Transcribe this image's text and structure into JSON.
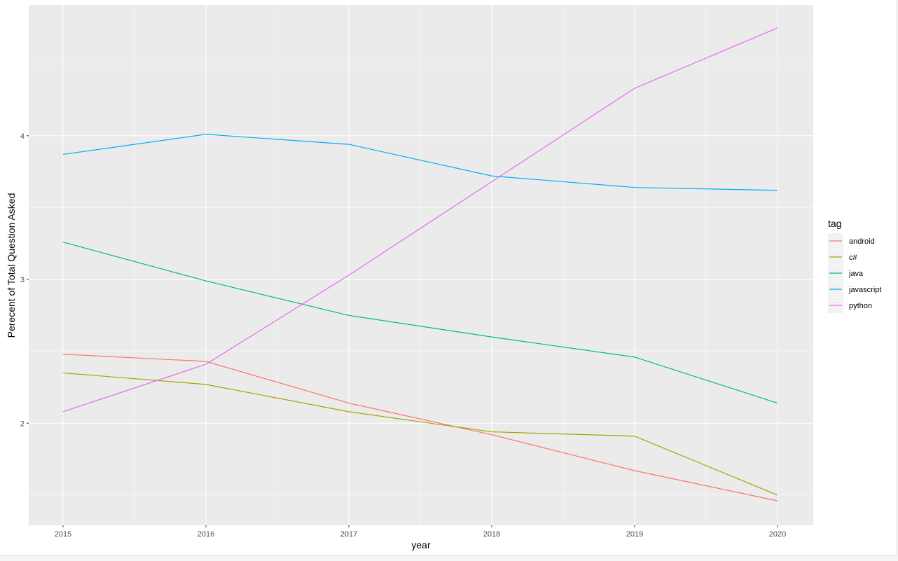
{
  "chart_data": {
    "type": "line",
    "title": "",
    "xlabel": "year",
    "ylabel": "Perecent of Total Question Asked",
    "x": [
      2015,
      2016,
      2017,
      2018,
      2019,
      2020
    ],
    "x_tick_labels": [
      "2015",
      "2016",
      "2017",
      "2018",
      "2019",
      "2020"
    ],
    "y_ticks": [
      2,
      3,
      4
    ],
    "y_tick_labels": [
      "2",
      "3",
      "4"
    ],
    "xlim": [
      2014.76,
      2020.25
    ],
    "ylim": [
      1.29,
      4.91
    ],
    "grid": true,
    "legend": {
      "title": "tag",
      "position": "right"
    },
    "series": [
      {
        "name": "android",
        "color": "#F8766D",
        "values": [
          2.48,
          2.43,
          2.14,
          1.92,
          1.67,
          1.46
        ]
      },
      {
        "name": "c#",
        "color": "#A3A500",
        "values": [
          2.35,
          2.27,
          2.08,
          1.94,
          1.91,
          1.5
        ]
      },
      {
        "name": "java",
        "color": "#00BF7D",
        "values": [
          3.26,
          2.99,
          2.75,
          2.6,
          2.46,
          2.14
        ]
      },
      {
        "name": "javascript",
        "color": "#00B0F6",
        "values": [
          3.87,
          4.01,
          3.94,
          3.72,
          3.64,
          3.62
        ]
      },
      {
        "name": "python",
        "color": "#E76BF3",
        "values": [
          2.08,
          2.41,
          3.03,
          3.68,
          4.33,
          4.75
        ]
      }
    ]
  }
}
